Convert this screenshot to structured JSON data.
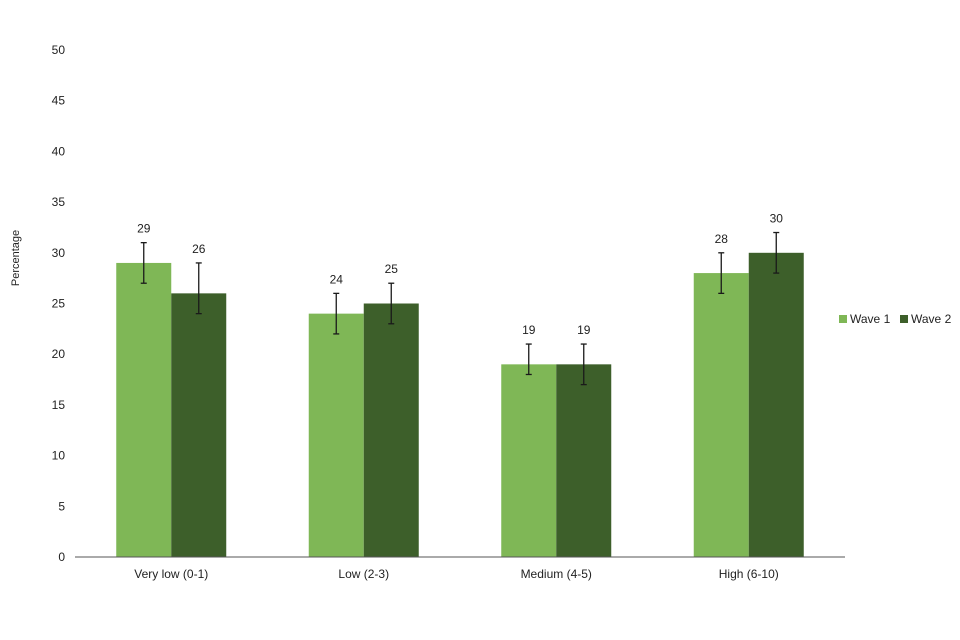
{
  "chart_data": {
    "type": "bar",
    "ylabel": "Percentage",
    "xlabel": "",
    "ylim": [
      0,
      50
    ],
    "yticks": [
      0,
      5,
      10,
      15,
      20,
      25,
      30,
      35,
      40,
      45,
      50
    ],
    "categories": [
      "Very low (0-1)",
      "Low (2-3)",
      "Medium (4-5)",
      "High (6-10)"
    ],
    "series": [
      {
        "name": "Wave 1",
        "color": "#7fb756",
        "values": [
          29,
          24,
          19,
          28
        ],
        "err_low": [
          27,
          22,
          18,
          26
        ],
        "err_high": [
          31,
          26,
          21,
          30
        ]
      },
      {
        "name": "Wave 2",
        "color": "#3d5f2a",
        "values": [
          26,
          25,
          19,
          30
        ],
        "err_low": [
          24,
          23,
          17,
          28
        ],
        "err_high": [
          29,
          27,
          21,
          32
        ]
      }
    ],
    "grid": false,
    "legend_position": "right"
  }
}
